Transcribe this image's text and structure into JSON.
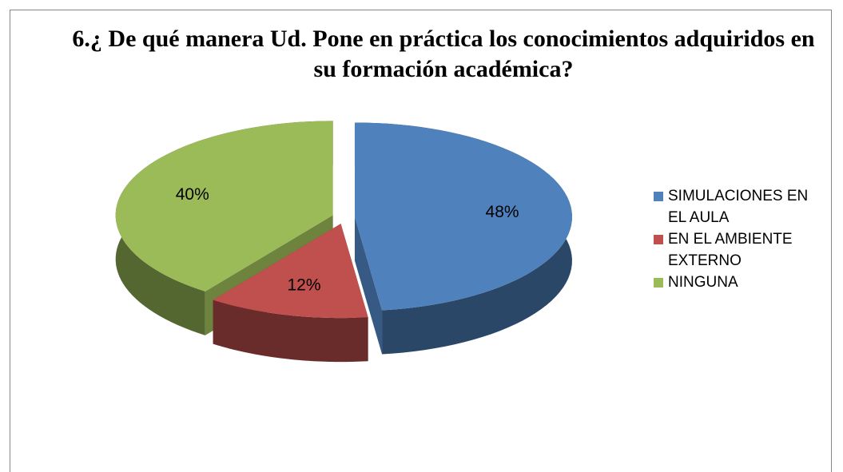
{
  "chart_data": {
    "type": "pie3d",
    "title": "6.¿ De qué manera Ud. Pone en práctica los conocimientos adquiridos en su formación académica?",
    "categories": [
      "SIMULACIONES EN EL AULA",
      "EN EL AMBIENTE EXTERNO",
      "NINGUNA"
    ],
    "values": [
      48,
      12,
      40
    ],
    "value_labels": [
      "48%",
      "12%",
      "40%"
    ],
    "colors": [
      "#4f81bd",
      "#c0504d",
      "#9bbb59"
    ],
    "legend": "right"
  }
}
